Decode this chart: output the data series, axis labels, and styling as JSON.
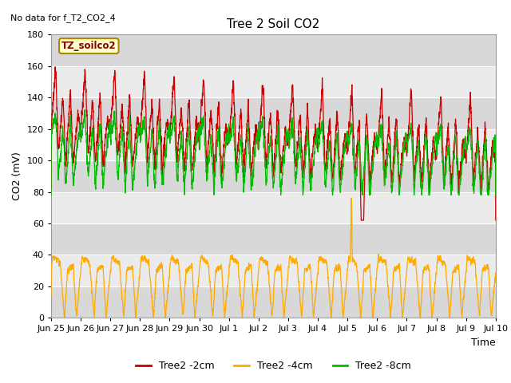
{
  "title": "Tree 2 Soil CO2",
  "no_data_text": "No data for f_T2_CO2_4",
  "annotation_label": "TZ_soilco2",
  "ylabel": "CO2 (mV)",
  "xlabel": "Time",
  "ylim": [
    0,
    180
  ],
  "yticks": [
    0,
    20,
    40,
    60,
    80,
    100,
    120,
    140,
    160,
    180
  ],
  "legend": [
    {
      "label": "Tree2 -2cm",
      "color": "#cc0000"
    },
    {
      "label": "Tree2 -4cm",
      "color": "#ffaa00"
    },
    {
      "label": "Tree2 -8cm",
      "color": "#00bb00"
    }
  ],
  "line_colors": {
    "red": "#cc0000",
    "orange": "#ffaa00",
    "green": "#00bb00"
  },
  "xtick_labels": [
    "Jun 25",
    "Jun 26",
    "Jun 27",
    "Jun 28",
    "Jun 29",
    "Jun 30",
    "Jul 1",
    "Jul 2",
    "Jul 3",
    "Jul 4",
    "Jul 5",
    "Jul 6",
    "Jul 7",
    "Jul 8",
    "Jul 9",
    "Jul 10"
  ],
  "background_color": "#ffffff",
  "plot_bg_light": "#ebebeb",
  "plot_bg_dark": "#d8d8d8",
  "title_fontsize": 11,
  "label_fontsize": 9,
  "tick_fontsize": 8
}
